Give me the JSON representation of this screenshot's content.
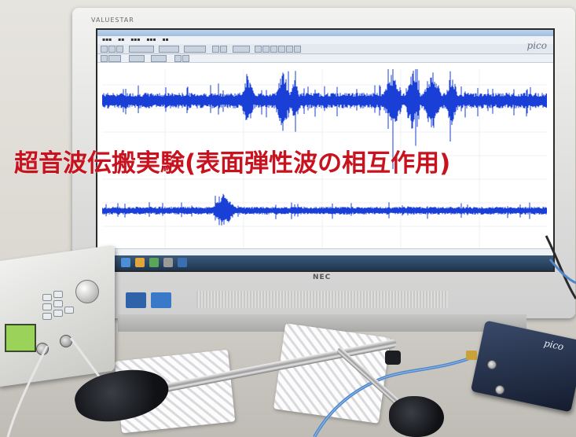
{
  "overlay": {
    "title": "超音波伝搬実験(表面弾性波の相互作用)"
  },
  "monitor": {
    "brand": "VALUESTAR",
    "maker": "NEC"
  },
  "software": {
    "logo": "pico"
  },
  "device": {
    "logo": "pico"
  },
  "colors": {
    "title_red": "#c8121e",
    "waveform_blue": "#1a3fd6",
    "screen_bg": "#ffffff"
  }
}
